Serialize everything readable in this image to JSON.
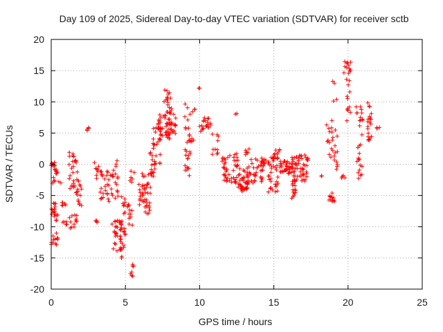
{
  "chart_data": {
    "type": "scatter",
    "title": "Day 109 of 2025, Sidereal Day-to-day VTEC variation (SDTVAR) for receiver sctb",
    "xlabel": "GPS time / hours",
    "ylabel": "SDTVAR / TECUs",
    "xlim": [
      0,
      25
    ],
    "ylim": [
      -20,
      20
    ],
    "xticks": [
      0,
      5,
      10,
      15,
      20,
      25
    ],
    "yticks": [
      -20,
      -15,
      -10,
      -5,
      0,
      5,
      10,
      15,
      20
    ],
    "grid": true,
    "marker": "plus",
    "color": "#ff0000",
    "series": [
      {
        "name": "SDTVAR",
        "clusters": [
          {
            "x": [
              0.0,
              0.25
            ],
            "y": [
              -0.5,
              0.3
            ],
            "n": 10
          },
          {
            "x": [
              0.2,
              0.45
            ],
            "y": [
              -1.5,
              -0.5
            ],
            "n": 8
          },
          {
            "x": [
              0.0,
              0.3
            ],
            "y": [
              -8.5,
              -5.5
            ],
            "n": 14
          },
          {
            "x": [
              0.05,
              0.25
            ],
            "y": [
              -4.0,
              -2.0
            ],
            "n": 4
          },
          {
            "x": [
              0.0,
              0.45
            ],
            "y": [
              -13.0,
              -11.0
            ],
            "n": 12
          },
          {
            "x": [
              0.3,
              0.45
            ],
            "y": [
              -9.0,
              -8.0
            ],
            "n": 4
          },
          {
            "x": [
              0.5,
              0.65
            ],
            "y": [
              -3.0,
              -2.7
            ],
            "n": 2
          },
          {
            "x": [
              0.7,
              1.0
            ],
            "y": [
              -6.8,
              -6.0
            ],
            "n": 6
          },
          {
            "x": [
              0.75,
              1.05
            ],
            "y": [
              -9.7,
              -9.0
            ],
            "n": 5
          },
          {
            "x": [
              1.2,
              1.75
            ],
            "y": [
              -10.3,
              -8.0
            ],
            "n": 12
          },
          {
            "x": [
              1.2,
              1.8
            ],
            "y": [
              -5.0,
              2.0
            ],
            "n": 30
          },
          {
            "x": [
              1.8,
              2.05
            ],
            "y": [
              -7.0,
              -2.5
            ],
            "n": 12
          },
          {
            "x": [
              2.4,
              2.55
            ],
            "y": [
              5.0,
              6.0
            ],
            "n": 4
          },
          {
            "x": [
              2.9,
              3.15
            ],
            "y": [
              -9.5,
              -9.0
            ],
            "n": 4
          },
          {
            "x": [
              2.9,
              3.2
            ],
            "y": [
              -2.5,
              0.5
            ],
            "n": 8
          },
          {
            "x": [
              3.3,
              3.9
            ],
            "y": [
              -6.0,
              -1.0
            ],
            "n": 25
          },
          {
            "x": [
              3.9,
              4.5
            ],
            "y": [
              -6.0,
              2.0
            ],
            "n": 20
          },
          {
            "x": [
              4.1,
              4.8
            ],
            "y": [
              -14.0,
              -9.0
            ],
            "n": 30
          },
          {
            "x": [
              4.6,
              5.1
            ],
            "y": [
              -15.5,
              -10.0
            ],
            "n": 20
          },
          {
            "x": [
              4.7,
              5.0
            ],
            "y": [
              -8.0,
              -5.0
            ],
            "n": 8
          },
          {
            "x": [
              5.1,
              5.5
            ],
            "y": [
              -10.0,
              -6.0
            ],
            "n": 12
          },
          {
            "x": [
              5.2,
              5.6
            ],
            "y": [
              -3.5,
              -1.0
            ],
            "n": 6
          },
          {
            "x": [
              5.3,
              5.55
            ],
            "y": [
              -18.0,
              -16.0
            ],
            "n": 8
          },
          {
            "x": [
              5.9,
              6.7
            ],
            "y": [
              -8.0,
              -3.0
            ],
            "n": 40
          },
          {
            "x": [
              6.1,
              6.7
            ],
            "y": [
              -2.5,
              -1.0
            ],
            "n": 6
          },
          {
            "x": [
              6.6,
              7.1
            ],
            "y": [
              -2.0,
              2.0
            ],
            "n": 15
          },
          {
            "x": [
              6.8,
              7.4
            ],
            "y": [
              0.0,
              6.0
            ],
            "n": 25
          },
          {
            "x": [
              7.2,
              8.4
            ],
            "y": [
              4.0,
              8.0
            ],
            "n": 55
          },
          {
            "x": [
              7.6,
              8.1
            ],
            "y": [
              8.0,
              12.0
            ],
            "n": 20
          },
          {
            "x": [
              9.0,
              9.4
            ],
            "y": [
              -3.0,
              10.0
            ],
            "n": 30
          },
          {
            "x": [
              9.5,
              9.7
            ],
            "y": [
              8.0,
              9.5
            ],
            "n": 3
          },
          {
            "x": [
              9.4,
              9.6
            ],
            "y": [
              2.5,
              5.0
            ],
            "n": 4
          },
          {
            "x": [
              9.8,
              10.0
            ],
            "y": [
              12.0,
              12.3
            ],
            "n": 2
          },
          {
            "x": [
              10.0,
              10.8
            ],
            "y": [
              5.0,
              7.5
            ],
            "n": 20
          },
          {
            "x": [
              10.8,
              11.3
            ],
            "y": [
              1.5,
              5.0
            ],
            "n": 10
          },
          {
            "x": [
              11.5,
              12.5
            ],
            "y": [
              -3.0,
              1.5
            ],
            "n": 40
          },
          {
            "x": [
              12.3,
              12.6
            ],
            "y": [
              -1.0,
              2.0
            ],
            "n": 6
          },
          {
            "x": [
              12.4,
              12.6
            ],
            "y": [
              8.0,
              8.2
            ],
            "n": 2
          },
          {
            "x": [
              12.6,
              13.3
            ],
            "y": [
              -4.5,
              -0.5
            ],
            "n": 45
          },
          {
            "x": [
              13.0,
              13.4
            ],
            "y": [
              1.5,
              2.5
            ],
            "n": 6
          },
          {
            "x": [
              13.3,
              14.3
            ],
            "y": [
              -3.0,
              1.0
            ],
            "n": 35
          },
          {
            "x": [
              14.1,
              14.5
            ],
            "y": [
              0.0,
              1.0
            ],
            "n": 8
          },
          {
            "x": [
              14.6,
              15.3
            ],
            "y": [
              -5.0,
              1.5
            ],
            "n": 30
          },
          {
            "x": [
              14.9,
              15.4
            ],
            "y": [
              -1.0,
              2.5
            ],
            "n": 15
          },
          {
            "x": [
              15.4,
              16.2
            ],
            "y": [
              -1.5,
              0.5
            ],
            "n": 35
          },
          {
            "x": [
              16.2,
              17.3
            ],
            "y": [
              -3.0,
              1.5
            ],
            "n": 60
          },
          {
            "x": [
              16.2,
              16.5
            ],
            "y": [
              -6.5,
              -3.0
            ],
            "n": 12
          },
          {
            "x": [
              18.1,
              18.3
            ],
            "y": [
              -2.2,
              -1.8
            ],
            "n": 2
          },
          {
            "x": [
              18.6,
              19.1
            ],
            "y": [
              -6.0,
              -4.5
            ],
            "n": 12
          },
          {
            "x": [
              18.5,
              18.9
            ],
            "y": [
              0.0,
              7.0
            ],
            "n": 10
          },
          {
            "x": [
              18.9,
              19.3
            ],
            "y": [
              -1.0,
              14.0
            ],
            "n": 20
          },
          {
            "x": [
              19.5,
              19.8
            ],
            "y": [
              -2.5,
              -1.5
            ],
            "n": 4
          },
          {
            "x": [
              19.7,
              20.2
            ],
            "y": [
              14.5,
              16.5
            ],
            "n": 12
          },
          {
            "x": [
              19.9,
              20.2
            ],
            "y": [
              6.0,
              14.0
            ],
            "n": 12
          },
          {
            "x": [
              20.5,
              21.0
            ],
            "y": [
              -2.5,
              12.0
            ],
            "n": 25
          },
          {
            "x": [
              20.8,
              21.0
            ],
            "y": [
              7.0,
              7.5
            ],
            "n": 3
          },
          {
            "x": [
              21.3,
              21.6
            ],
            "y": [
              3.5,
              10.0
            ],
            "n": 20
          },
          {
            "x": [
              21.9,
              22.2
            ],
            "y": [
              5.7,
              6.0
            ],
            "n": 3
          }
        ]
      }
    ]
  }
}
